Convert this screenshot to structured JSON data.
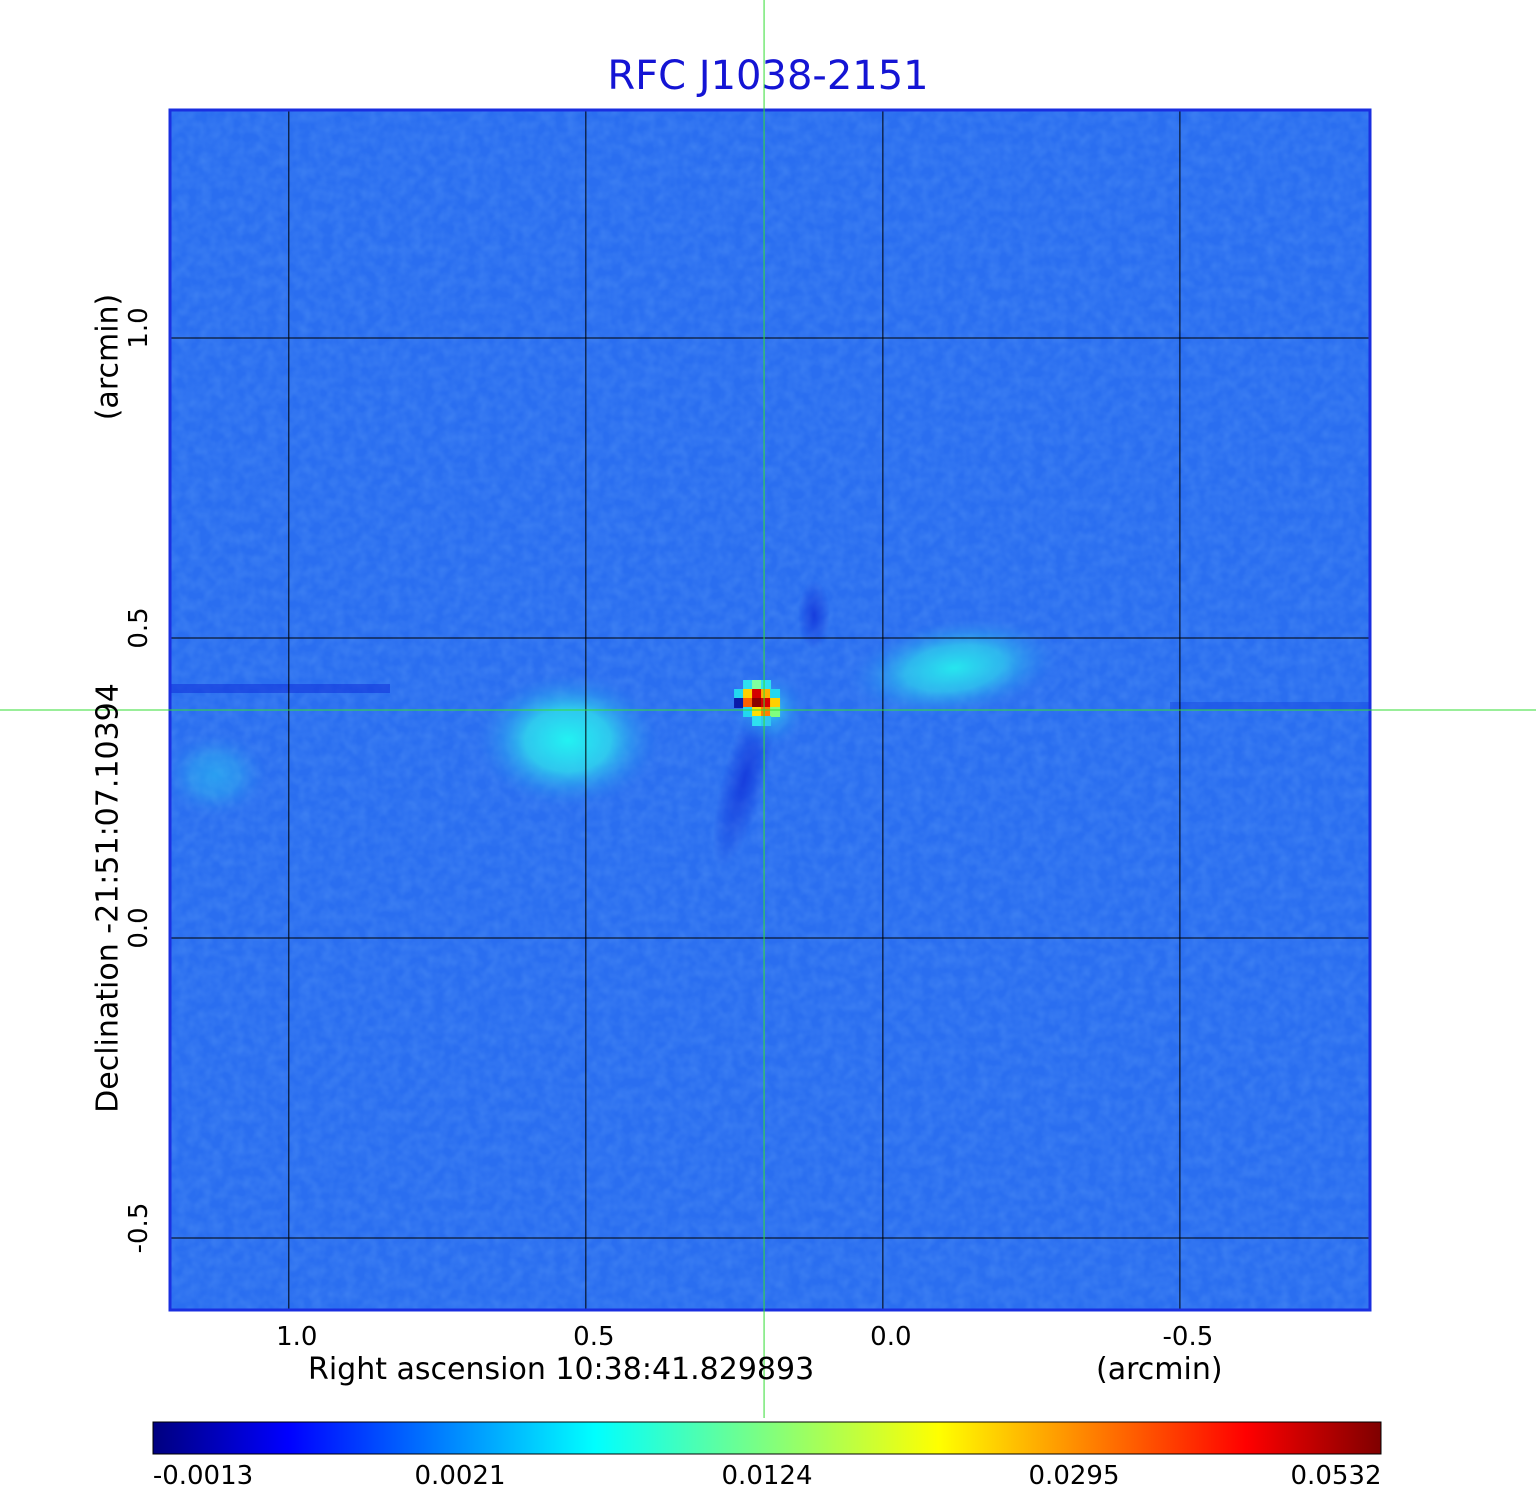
{
  "chart_data": {
    "type": "heatmap",
    "title": "RFC J1038-2151",
    "xlabel": "Right ascension  10:38:41.829893",
    "xunit": "(arcmin)",
    "ylabel": "Declination  -21:51:07.10394",
    "yunit": "(arcmin)",
    "x_ticks": [
      1.0,
      0.5,
      0.0,
      -0.5
    ],
    "x_tick_labels": [
      "1.0",
      "0.5",
      "0.0",
      "-0.5"
    ],
    "y_ticks": [
      1.0,
      0.5,
      0.0,
      -0.5
    ],
    "y_tick_labels": [
      "1.0",
      "0.5",
      "0.0",
      "-0.5"
    ],
    "xlim": [
      1.2,
      -0.82
    ],
    "ylim": [
      -0.62,
      1.38
    ],
    "grid": true,
    "crosshair": {
      "x": 0.2,
      "y": 0.38,
      "color": "#33dd33"
    },
    "colormap": "jet",
    "colorbar": {
      "ticks": [
        "-0.0013",
        "0.0021",
        "0.0124",
        "0.0295",
        "0.0532"
      ],
      "placement": "bottom"
    },
    "background_level": 0.0008,
    "features": [
      {
        "name": "core",
        "x": 0.2,
        "y": 0.38,
        "peak": 0.0532
      },
      {
        "name": "lobe-east",
        "x": 0.53,
        "y": 0.33,
        "peak": 0.0021
      },
      {
        "name": "lobe-west",
        "x": -0.12,
        "y": 0.45,
        "peak": 0.0019
      }
    ]
  },
  "colors": {
    "title": "#1414d4",
    "frame": "#1a2fe0",
    "grid": "#000000",
    "crosshair": "#33dd33"
  }
}
